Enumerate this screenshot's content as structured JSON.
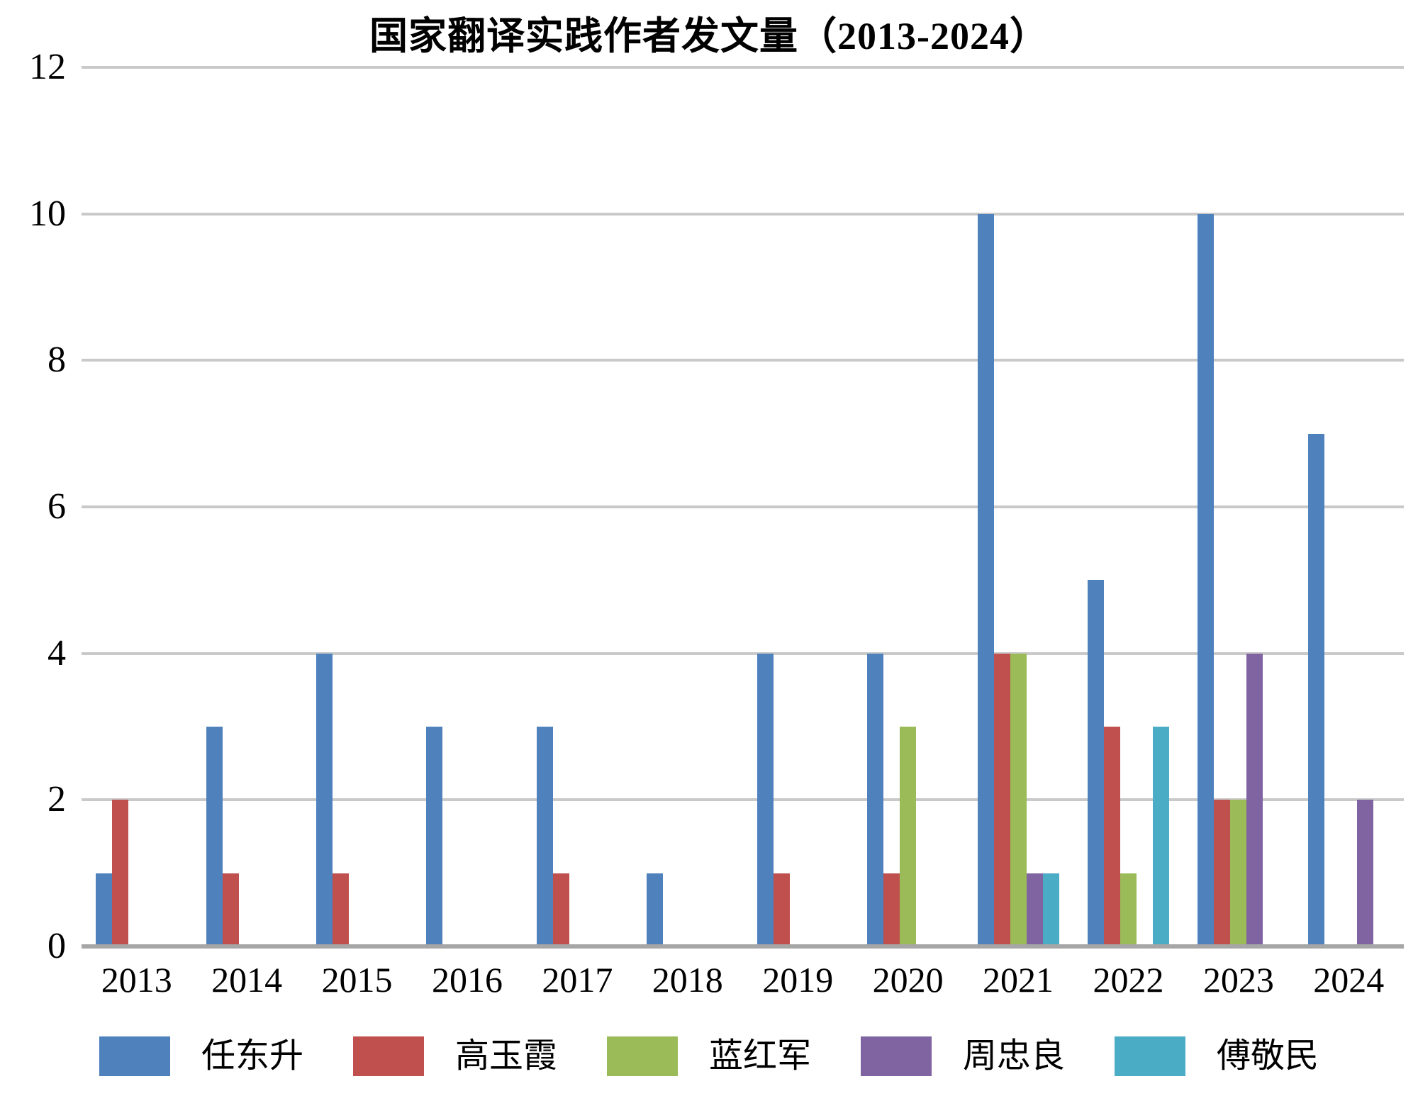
{
  "chart_data": {
    "type": "bar",
    "title": "国家翻译实践作者发文量（2013-2024）",
    "xlabel": "",
    "ylabel": "",
    "categories": [
      "2013",
      "2014",
      "2015",
      "2016",
      "2017",
      "2018",
      "2019",
      "2020",
      "2021",
      "2022",
      "2023",
      "2024"
    ],
    "series": [
      {
        "name": "任东升",
        "color": "#4F81BD",
        "values": [
          1,
          3,
          4,
          3,
          3,
          1,
          4,
          4,
          10,
          5,
          10,
          7
        ]
      },
      {
        "name": "高玉霞",
        "color": "#C0504D",
        "values": [
          2,
          1,
          1,
          0,
          1,
          0,
          1,
          1,
          4,
          3,
          2,
          0
        ]
      },
      {
        "name": "蓝红军",
        "color": "#9BBB59",
        "values": [
          0,
          0,
          0,
          0,
          0,
          0,
          0,
          3,
          4,
          1,
          2,
          0
        ]
      },
      {
        "name": "周忠良",
        "color": "#8064A2",
        "values": [
          0,
          0,
          0,
          0,
          0,
          0,
          0,
          0,
          1,
          0,
          4,
          2
        ]
      },
      {
        "name": "傅敬民",
        "color": "#4BACC6",
        "values": [
          0,
          0,
          0,
          0,
          0,
          0,
          0,
          0,
          1,
          3,
          0,
          0
        ]
      }
    ],
    "ylim": [
      0,
      12
    ],
    "yticks": [
      0,
      2,
      4,
      6,
      8,
      10,
      12
    ],
    "grid": true,
    "gridline_color": "#C9C9C9",
    "baseline_color": "#A6A6A6",
    "text_color": "#000000",
    "legend_position": "bottom"
  }
}
